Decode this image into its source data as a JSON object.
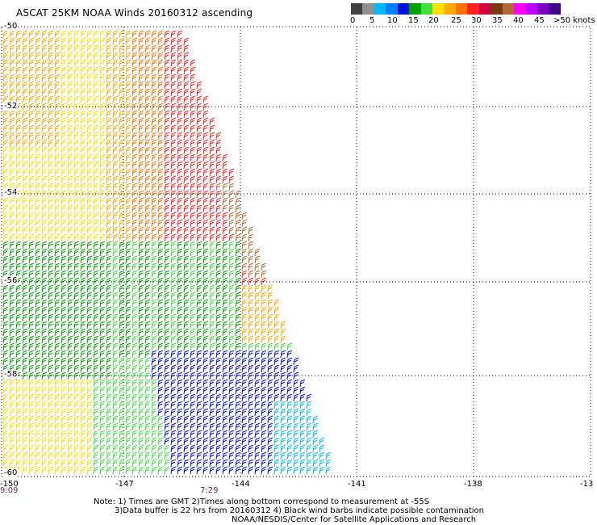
{
  "title": "ASCAT 25KM NOAA Winds 20160312 ascending",
  "colorbar": {
    "colors": [
      "#404040",
      "#909090",
      "#00b8ff",
      "#0080ff",
      "#0010d8",
      "#00a000",
      "#40e040",
      "#ffe000",
      "#ffa800",
      "#ff7000",
      "#ff2020",
      "#d00040",
      "#7a3a1a",
      "#b06a30",
      "#ff00ff",
      "#c000ff",
      "#8000c0",
      "#400090"
    ],
    "labels": [
      "0",
      "5",
      "10",
      "15",
      "20",
      "25",
      "30",
      "35",
      "40",
      "45",
      ">50 knots"
    ]
  },
  "lat_labels": [
    "-50",
    "-52",
    "-54",
    "-56",
    "-58",
    "-60"
  ],
  "lon_labels": [
    "-150",
    "-147",
    "-144",
    "-141",
    "-138",
    "-13"
  ],
  "time_labels": [
    "9:09",
    "7:29"
  ],
  "notes": {
    "line1": "Note: 1) Times are GMT 2)Times along bottom correspond to measurement at -55S",
    "line2": "3)Data buffer is 22 hrs from 20160312 4) Black wind barbs indicate possible contamination",
    "line3": "NOAA/NESDIS/Center for Satellite Applications and Research"
  }
}
